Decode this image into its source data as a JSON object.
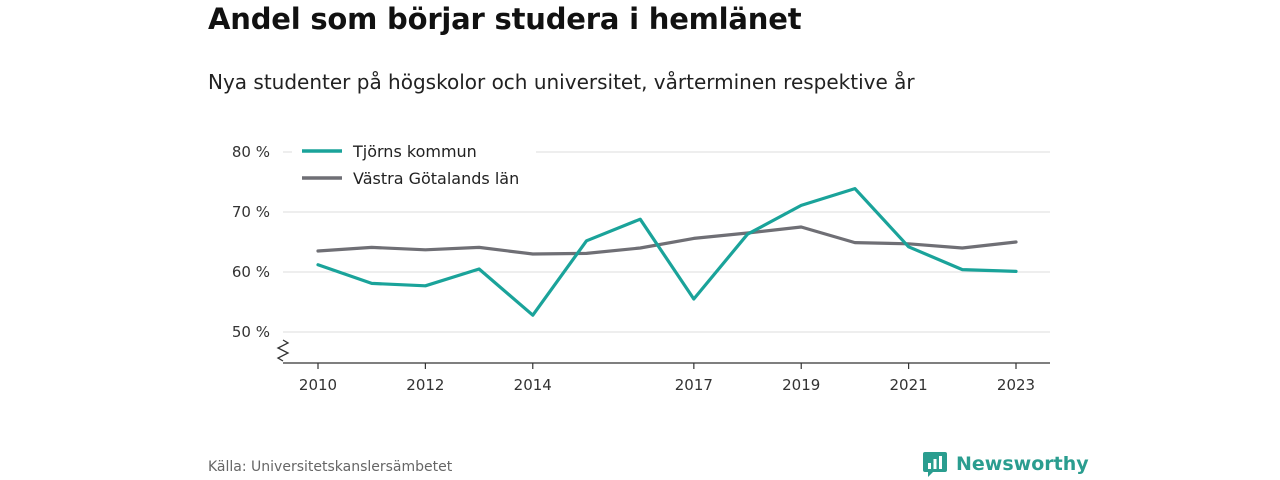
{
  "title": "Andel som börjar studera i hemlänet",
  "subtitle": "Nya studenter på högskolor och universitet, vårterminen respektive år",
  "source": "Källa: Universitetskanslersämbetet",
  "brand": {
    "name": "Newsworthy",
    "icon": "bar-chart-speech-icon",
    "color": "#2a9d8f"
  },
  "chart_data": {
    "type": "line",
    "x": [
      2010,
      2011,
      2012,
      2013,
      2014,
      2015,
      2016,
      2017,
      2018,
      2019,
      2020,
      2021,
      2022,
      2023
    ],
    "x_ticks": [
      2010,
      2012,
      2014,
      2017,
      2019,
      2021,
      2023
    ],
    "y_ticks": [
      "50 %",
      "60 %",
      "70 %",
      "80 %"
    ],
    "ylim": [
      50,
      80
    ],
    "grid": true,
    "legend_position": "top-left",
    "series": [
      {
        "name": "Tjörns kommun",
        "color": "#1aa39a",
        "values": [
          61.2,
          58.1,
          57.7,
          60.5,
          52.8,
          65.2,
          68.8,
          55.5,
          66.3,
          71.1,
          73.9,
          64.2,
          60.4,
          60.1
        ]
      },
      {
        "name": "Västra Götalands län",
        "color": "#6f6f75",
        "values": [
          63.5,
          64.1,
          63.7,
          64.1,
          63.0,
          63.1,
          64.0,
          65.6,
          66.5,
          67.5,
          64.9,
          64.7,
          64.0,
          65.0
        ]
      }
    ]
  }
}
